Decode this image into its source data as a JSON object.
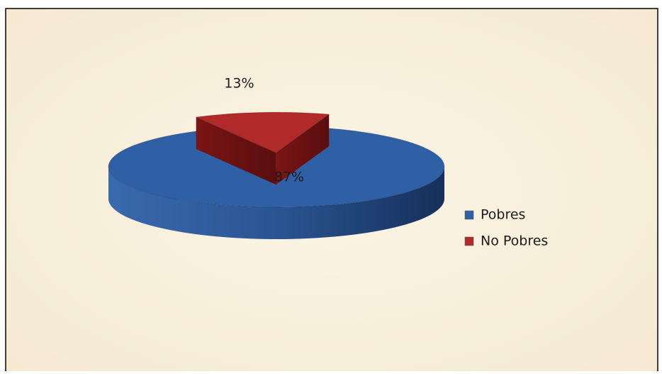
{
  "chart_data": {
    "type": "pie",
    "categories": [
      "Pobres",
      "No Pobres"
    ],
    "values": [
      87,
      13
    ],
    "value_labels": [
      "87%",
      "13%"
    ],
    "colors": [
      "#2f5fa5",
      "#b02a2a"
    ],
    "legend": "right"
  }
}
